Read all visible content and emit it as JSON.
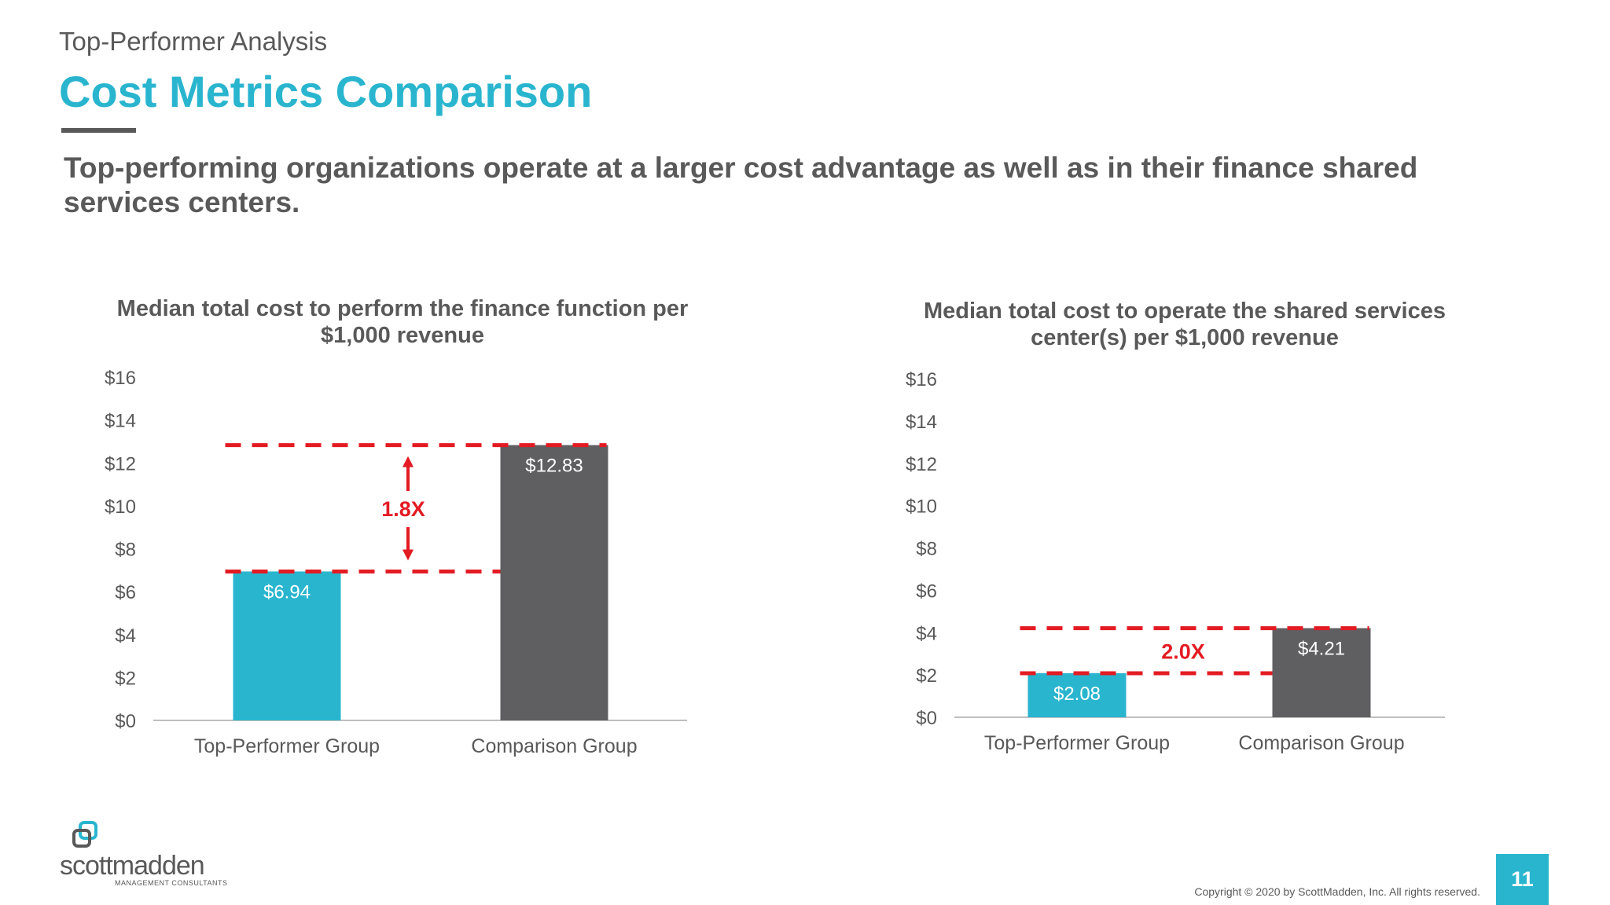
{
  "header": {
    "kicker": "Top-Performer Analysis",
    "title": "Cost Metrics Comparison",
    "subtitle": "Top-performing organizations operate at a larger cost advantage as well as in their finance shared services centers."
  },
  "colors": {
    "accent": "#2ab5cf",
    "dark_bar": "#5f5f62",
    "annotation": "#e31b23",
    "text": "#595959"
  },
  "chart_data": [
    {
      "type": "bar",
      "title": "Median total cost to perform the finance function per $1,000 revenue",
      "categories": [
        "Top-Performer Group",
        "Comparison Group"
      ],
      "values": [
        6.94,
        12.83
      ],
      "value_labels": [
        "$6.94",
        "$12.83"
      ],
      "ylim": [
        0,
        16
      ],
      "yticks": [
        0,
        2,
        4,
        6,
        8,
        10,
        12,
        14,
        16
      ],
      "ytick_labels": [
        "$0",
        "$2",
        "$4",
        "$6",
        "$8",
        "$10",
        "$12",
        "$14",
        "$16"
      ],
      "annotation": "1.8X",
      "xlabel": "",
      "ylabel": ""
    },
    {
      "type": "bar",
      "title": "Median total cost to operate the shared services center(s) per $1,000 revenue",
      "categories": [
        "Top-Performer Group",
        "Comparison Group"
      ],
      "values": [
        2.08,
        4.21
      ],
      "value_labels": [
        "$2.08",
        "$4.21"
      ],
      "ylim": [
        0,
        16
      ],
      "yticks": [
        0,
        2,
        4,
        6,
        8,
        10,
        12,
        14,
        16
      ],
      "ytick_labels": [
        "$0",
        "$2",
        "$4",
        "$6",
        "$8",
        "$10",
        "$12",
        "$14",
        "$16"
      ],
      "annotation": "2.0X",
      "xlabel": "",
      "ylabel": ""
    }
  ],
  "logo": {
    "name": "scottmadden",
    "tagline": "MANAGEMENT CONSULTANTS"
  },
  "footer": {
    "copyright": "Copyright © 2020 by ScottMadden, Inc. All rights reserved.",
    "page_number": "11"
  }
}
